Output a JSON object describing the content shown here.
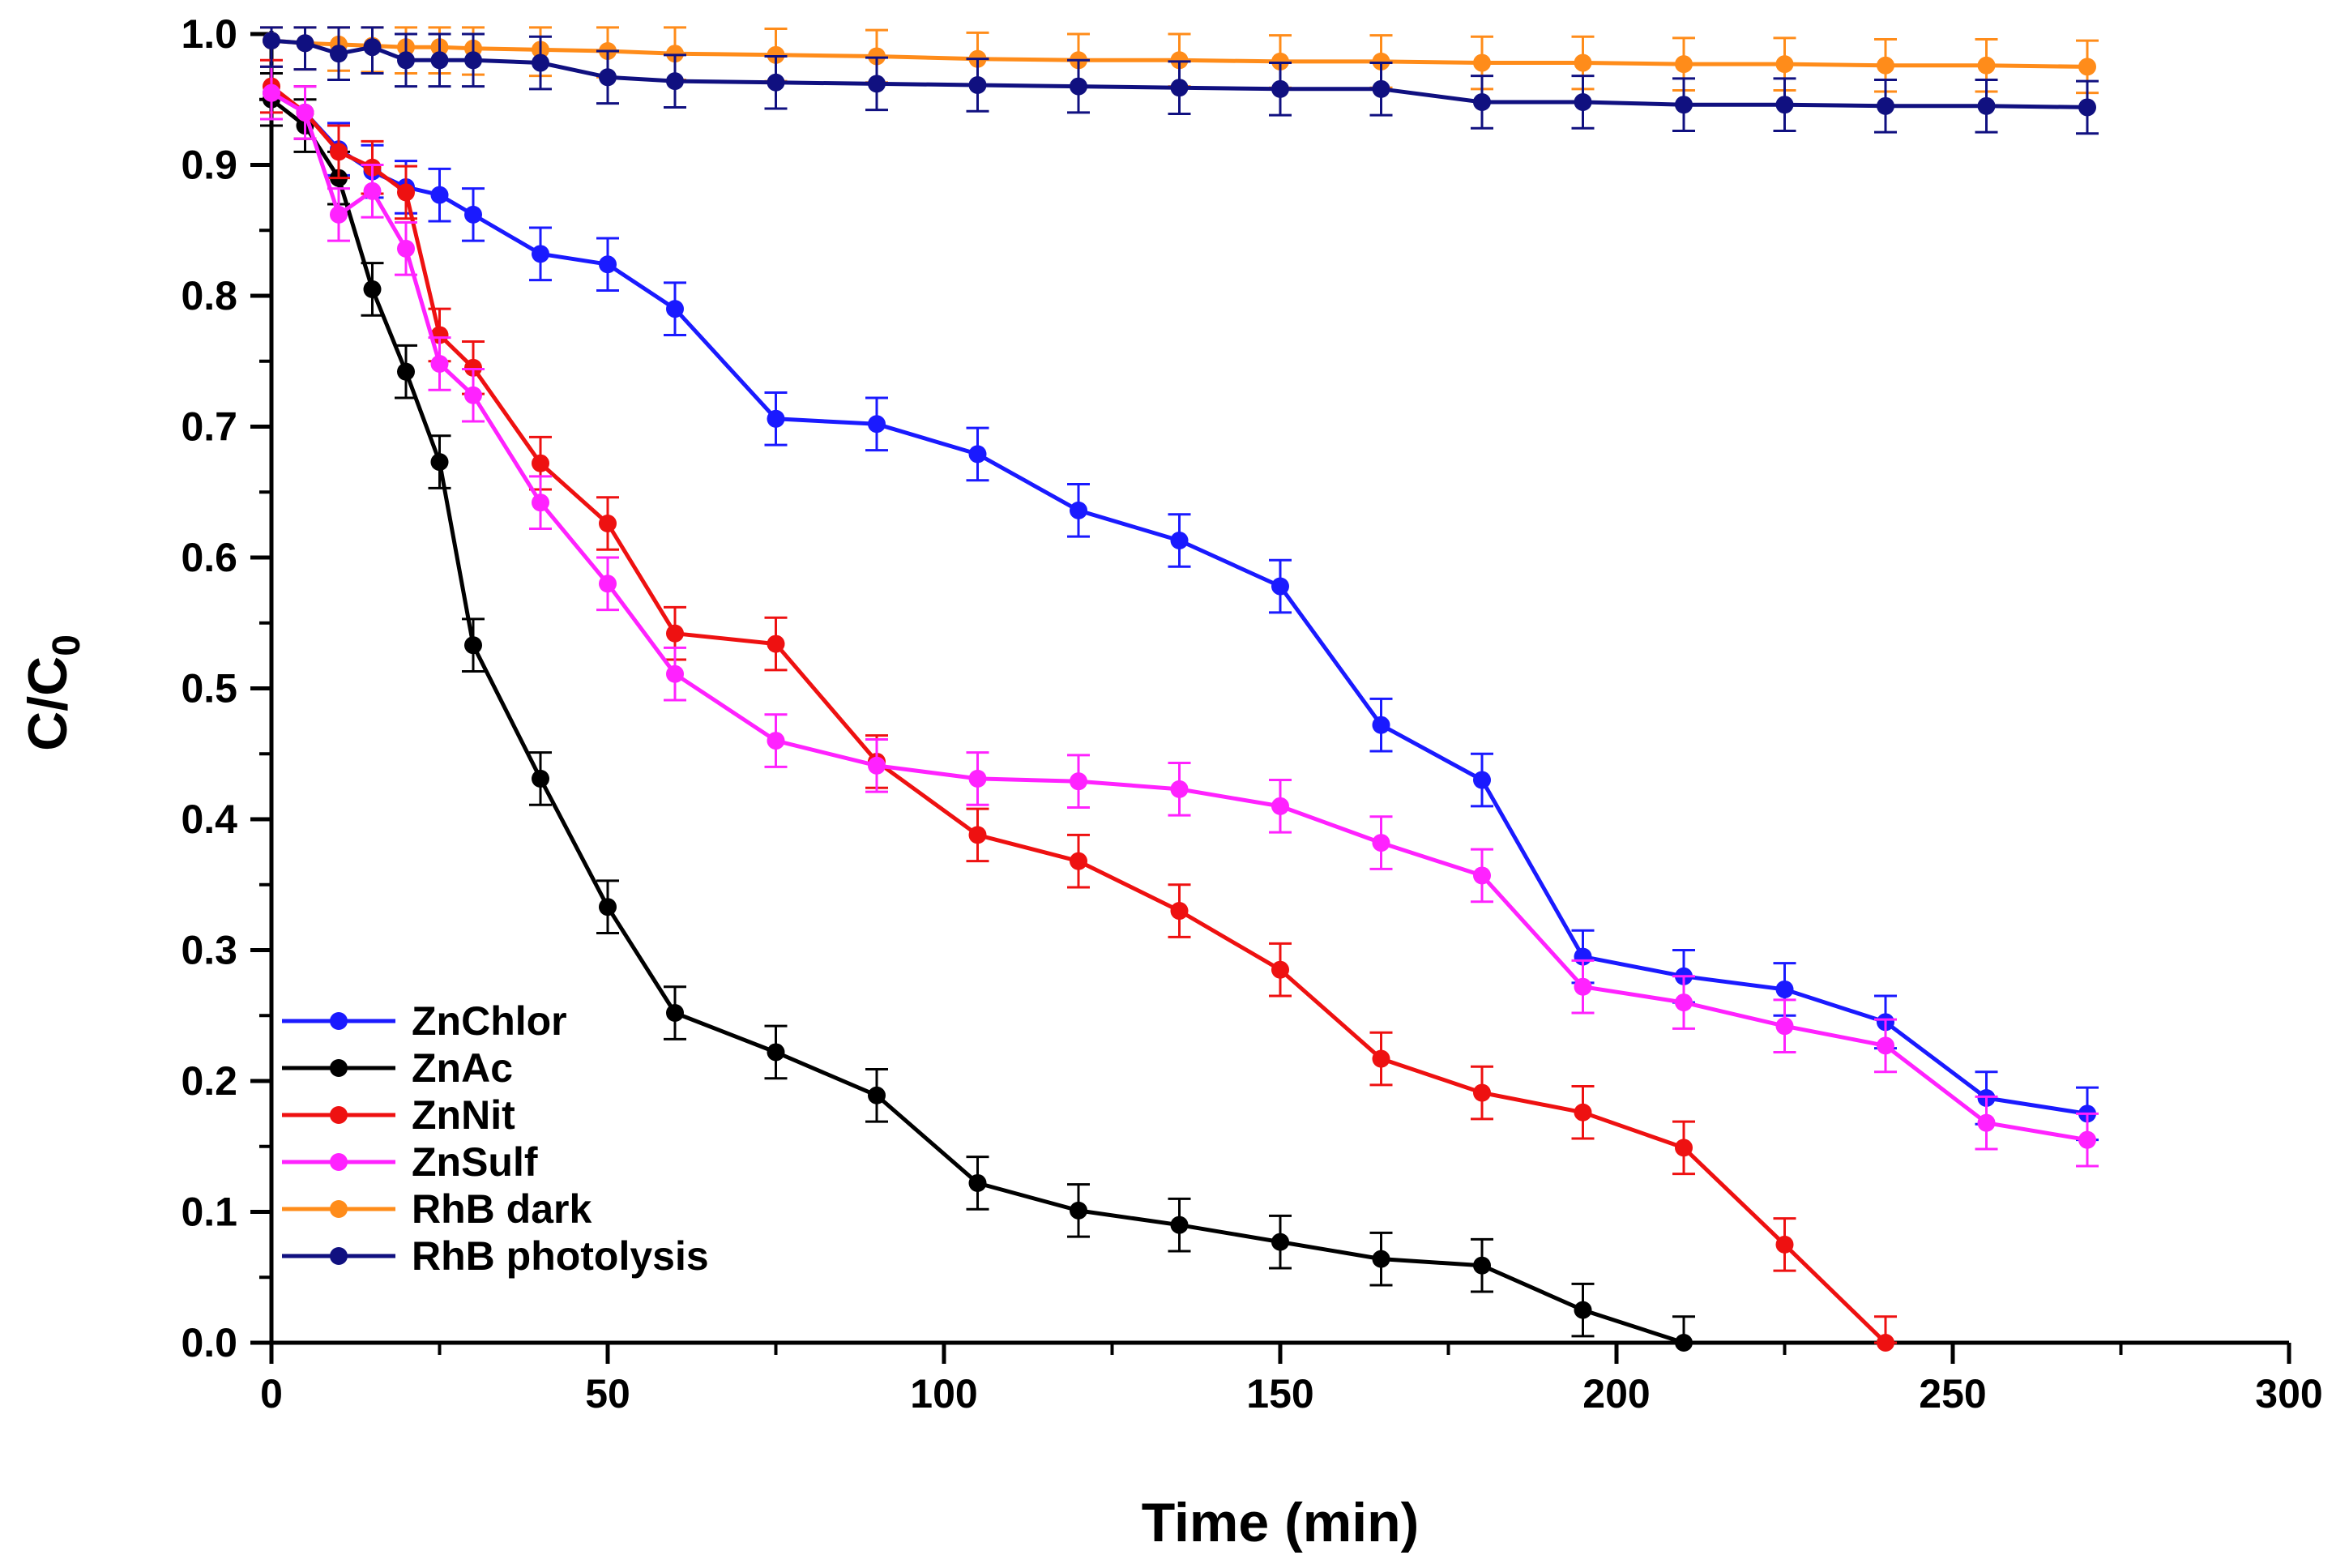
{
  "chart_data": {
    "type": "line",
    "title": "",
    "xlabel": "Time (min)",
    "ylabel": "C/C",
    "ylabel_subscript": "0",
    "xlim": [
      0,
      300
    ],
    "ylim": [
      0.0,
      1.0
    ],
    "xticks": [
      "0",
      "50",
      "100",
      "150",
      "200",
      "250",
      "300"
    ],
    "yticks": [
      "0.0",
      "0.1",
      "0.2",
      "0.3",
      "0.4",
      "0.5",
      "0.6",
      "0.7",
      "0.8",
      "0.9",
      "1.0"
    ],
    "grid": false,
    "legend_position": "bottom-left",
    "series": [
      {
        "name": "ZnChlor",
        "color": "#1a1aff",
        "x": [
          0,
          5,
          10,
          15,
          20,
          25,
          30,
          40,
          50,
          60,
          75,
          90,
          105,
          120,
          135,
          150,
          165,
          180,
          195,
          210,
          225,
          240,
          255,
          270
        ],
        "y": [
          0.955,
          0.94,
          0.912,
          0.895,
          0.883,
          0.877,
          0.862,
          0.832,
          0.824,
          0.79,
          0.706,
          0.702,
          0.679,
          0.636,
          0.613,
          0.578,
          0.472,
          0.43,
          0.295,
          0.28,
          0.27,
          0.245,
          0.187,
          0.175
        ],
        "err": 0.02
      },
      {
        "name": "ZnAc",
        "color": "#000000",
        "x": [
          0,
          5,
          10,
          15,
          20,
          25,
          30,
          40,
          50,
          60,
          75,
          90,
          105,
          120,
          135,
          150,
          165,
          180,
          195,
          210
        ],
        "y": [
          0.95,
          0.93,
          0.89,
          0.805,
          0.742,
          0.673,
          0.533,
          0.431,
          0.333,
          0.252,
          0.222,
          0.189,
          0.122,
          0.101,
          0.09,
          0.077,
          0.064,
          0.059,
          0.025,
          0.0
        ],
        "err": 0.02
      },
      {
        "name": "ZnNit",
        "color": "#ee1111",
        "x": [
          0,
          5,
          10,
          15,
          20,
          25,
          30,
          40,
          50,
          60,
          75,
          90,
          105,
          120,
          135,
          150,
          165,
          180,
          195,
          210,
          225,
          240
        ],
        "y": [
          0.96,
          0.94,
          0.91,
          0.898,
          0.879,
          0.77,
          0.745,
          0.672,
          0.626,
          0.542,
          0.534,
          0.444,
          0.388,
          0.368,
          0.33,
          0.285,
          0.217,
          0.191,
          0.176,
          0.149,
          0.075,
          0.0
        ],
        "err": 0.02
      },
      {
        "name": "ZnSulf",
        "color": "#ff22ff",
        "x": [
          0,
          5,
          10,
          15,
          20,
          25,
          30,
          40,
          50,
          60,
          75,
          90,
          105,
          120,
          135,
          150,
          165,
          180,
          195,
          210,
          225,
          240,
          255,
          270
        ],
        "y": [
          0.955,
          0.94,
          0.862,
          0.88,
          0.836,
          0.748,
          0.724,
          0.642,
          0.58,
          0.511,
          0.46,
          0.441,
          0.431,
          0.429,
          0.423,
          0.41,
          0.382,
          0.357,
          0.272,
          0.26,
          0.242,
          0.227,
          0.168,
          0.155
        ],
        "err": 0.02
      },
      {
        "name": "RhB dark",
        "color": "#ff8c1a",
        "x": [
          0,
          5,
          10,
          15,
          20,
          25,
          30,
          40,
          50,
          60,
          75,
          90,
          105,
          120,
          135,
          150,
          165,
          180,
          195,
          210,
          225,
          240,
          255,
          270
        ],
        "y": [
          0.995,
          0.993,
          0.992,
          0.991,
          0.99,
          0.99,
          0.989,
          0.988,
          0.987,
          0.985,
          0.984,
          0.983,
          0.981,
          0.98,
          0.98,
          0.979,
          0.979,
          0.978,
          0.978,
          0.977,
          0.977,
          0.976,
          0.976,
          0.975
        ],
        "err": 0.02
      },
      {
        "name": "RhB photolysis",
        "color": "#101080",
        "x": [
          0,
          5,
          10,
          15,
          20,
          25,
          30,
          40,
          50,
          60,
          75,
          90,
          105,
          120,
          135,
          150,
          165,
          180,
          195,
          210,
          225,
          240,
          255,
          270
        ],
        "y": [
          0.995,
          0.993,
          0.985,
          0.99,
          0.98,
          0.98,
          0.98,
          0.978,
          0.967,
          0.964,
          0.963,
          0.962,
          0.961,
          0.96,
          0.959,
          0.958,
          0.958,
          0.948,
          0.948,
          0.946,
          0.946,
          0.945,
          0.945,
          0.944
        ],
        "err": 0.02
      }
    ]
  }
}
